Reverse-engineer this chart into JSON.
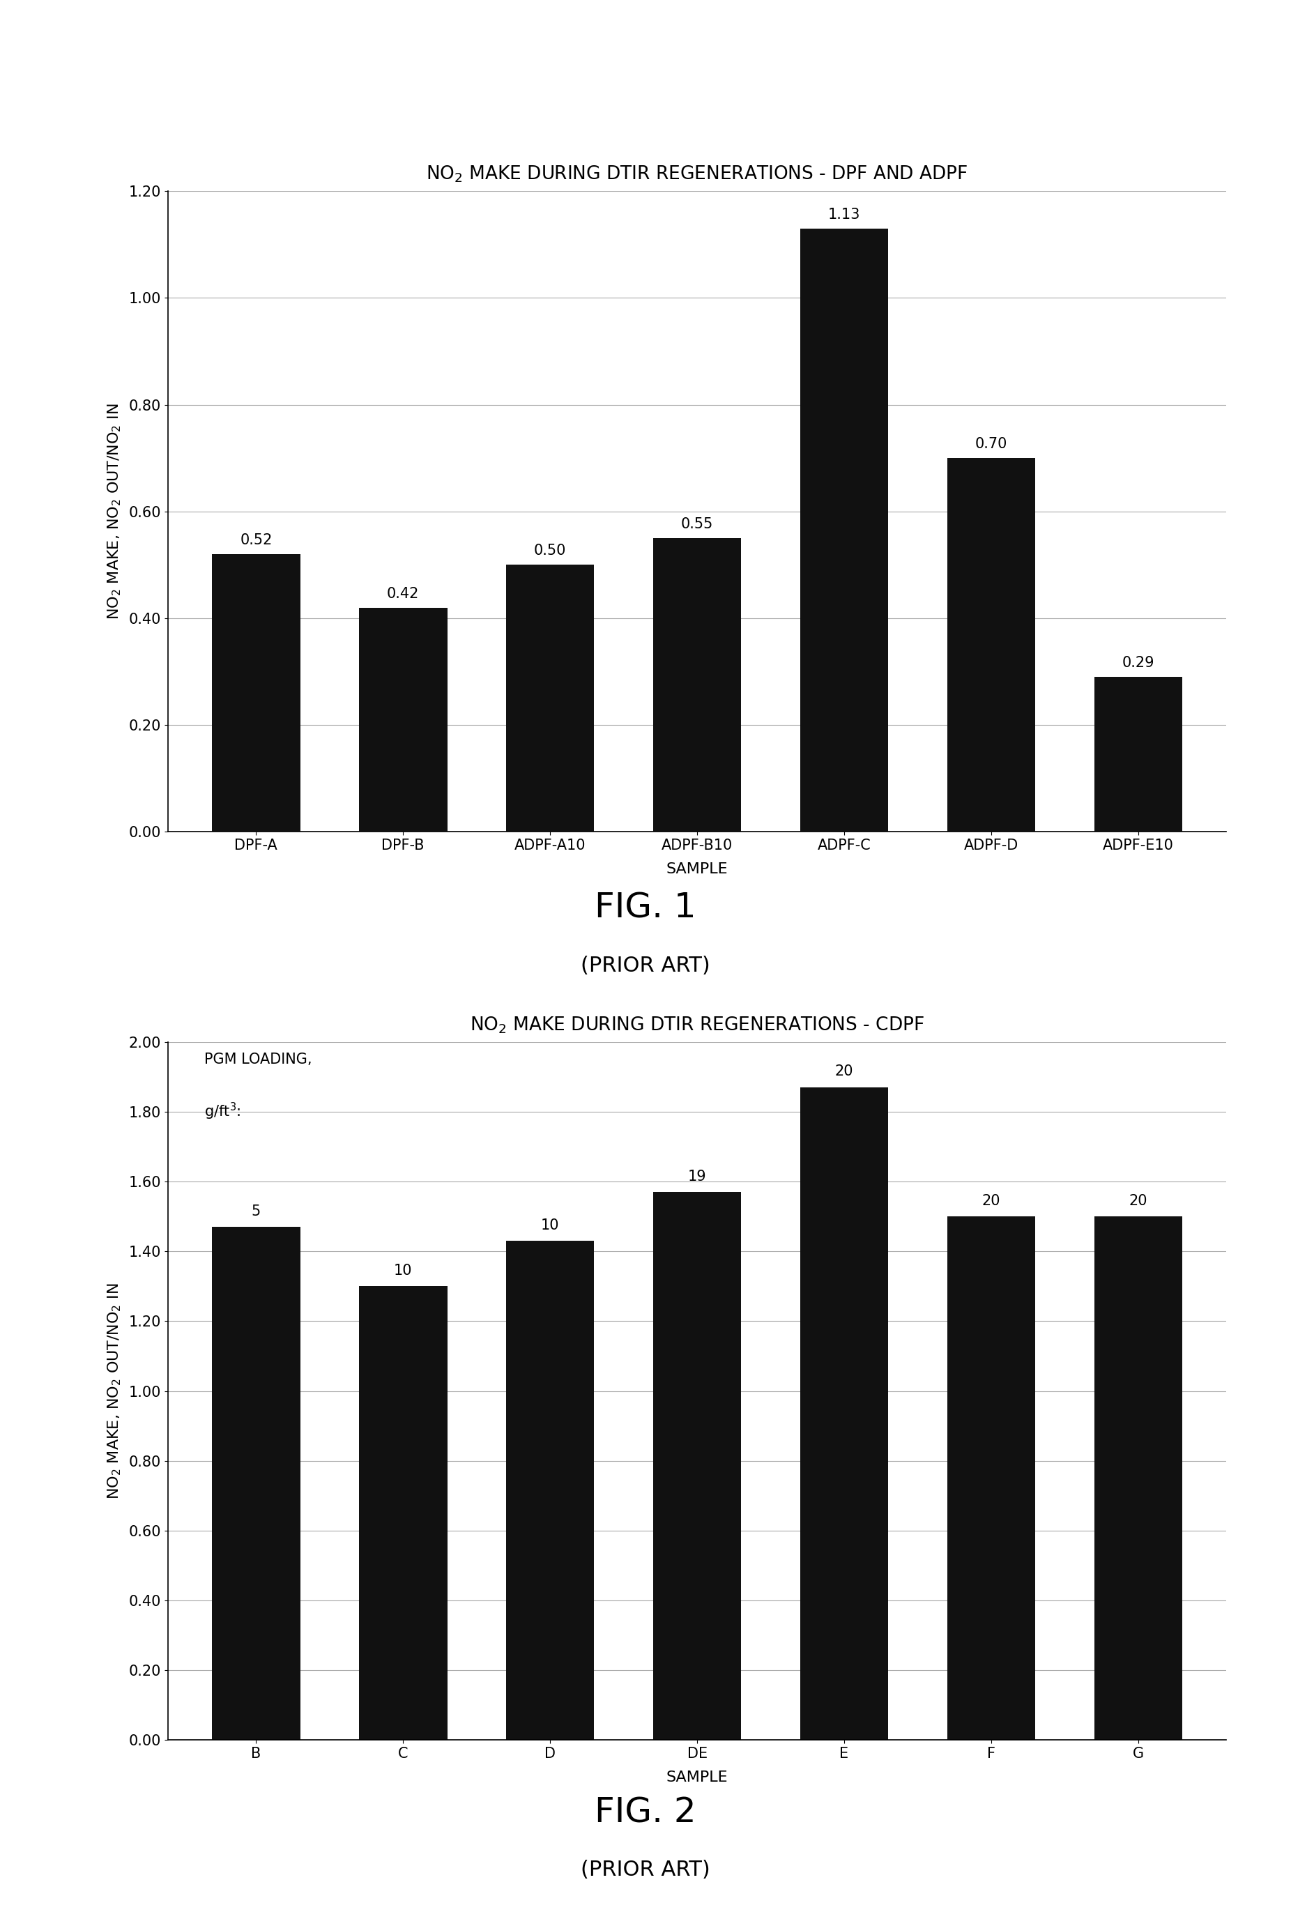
{
  "fig1": {
    "categories": [
      "DPF-A",
      "DPF-B",
      "ADPF-A10",
      "ADPF-B10",
      "ADPF-C",
      "ADPF-D",
      "ADPF-E10"
    ],
    "values": [
      0.52,
      0.42,
      0.5,
      0.55,
      1.13,
      0.7,
      0.29
    ],
    "ylim": [
      0.0,
      1.2
    ],
    "yticks": [
      0.0,
      0.2,
      0.4,
      0.6,
      0.8,
      1.0,
      1.2
    ],
    "title": "NO$_2$ MAKE DURING DTIR REGENERATIONS - DPF AND ADPF",
    "ylabel": "NO$_2$ MAKE, NO$_2$ OUT/NO$_2$ IN",
    "xlabel": "SAMPLE",
    "fig_label": "FIG. 1",
    "fig_sublabel": "(PRIOR ART)"
  },
  "fig2": {
    "categories": [
      "B",
      "C",
      "D",
      "DE",
      "E",
      "F",
      "G"
    ],
    "values": [
      1.47,
      1.3,
      1.43,
      1.57,
      1.87,
      1.5,
      1.5
    ],
    "pgm_values": [
      5,
      10,
      10,
      19,
      20,
      20,
      20
    ],
    "ylim": [
      0.0,
      2.0
    ],
    "yticks": [
      0.0,
      0.2,
      0.4,
      0.6,
      0.8,
      1.0,
      1.2,
      1.4,
      1.6,
      1.8,
      2.0
    ],
    "title": "NO$_2$ MAKE DURING DTIR REGENERATIONS - CDPF",
    "ylabel": "NO$_2$ MAKE, NO$_2$ OUT/NO$_2$ IN",
    "xlabel": "SAMPLE",
    "pgm_label1": "PGM LOADING,",
    "pgm_label2": "g/ft$^3$:",
    "fig_label": "FIG. 2",
    "fig_sublabel": "(PRIOR ART)"
  },
  "bar_color": "#111111",
  "background_color": "#ffffff",
  "title_fontsize": 19,
  "label_fontsize": 16,
  "tick_fontsize": 15,
  "bar_label_fontsize": 15,
  "fig_label_fontsize": 36,
  "fig_sublabel_fontsize": 22,
  "bar_width": 0.6,
  "grid_color": "#aaaaaa",
  "grid_linewidth": 0.8
}
